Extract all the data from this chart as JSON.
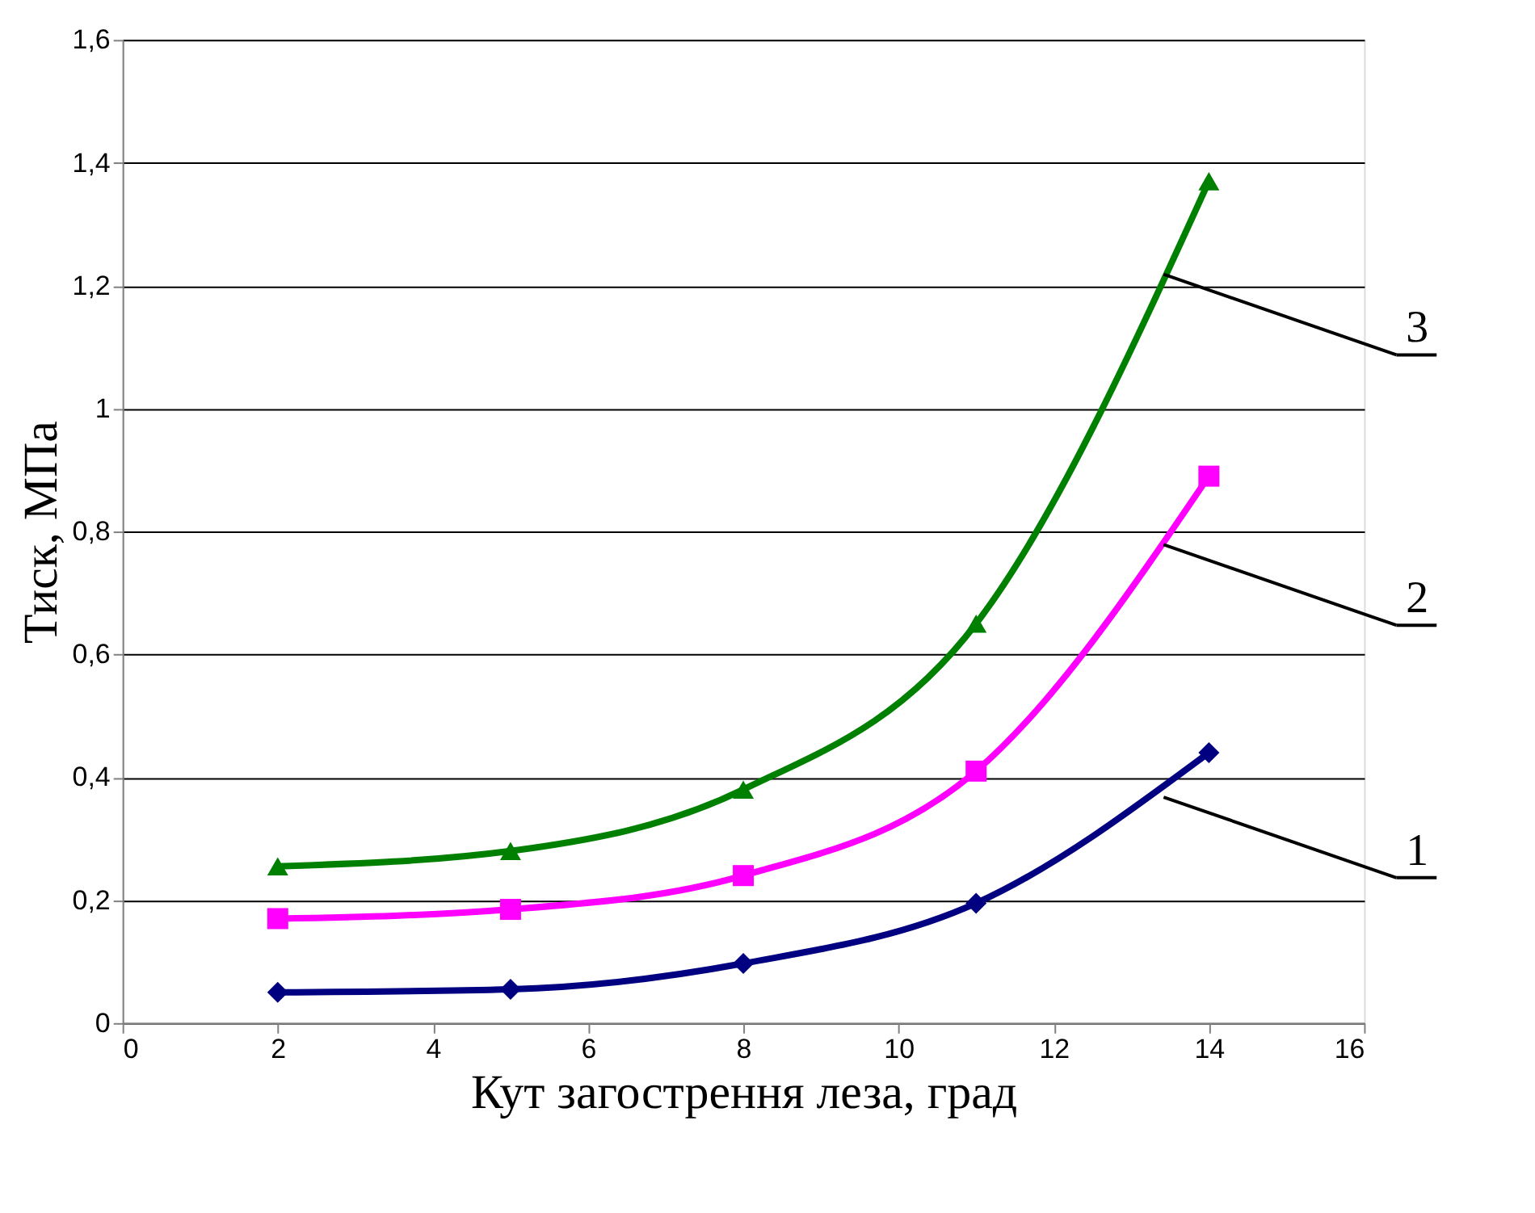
{
  "chart_data": {
    "type": "line",
    "xlabel": "Кут загострення леза, град",
    "ylabel": "Тиск, МПа",
    "x": [
      2,
      5,
      8,
      11,
      14
    ],
    "series": [
      {
        "name": "1",
        "color": "#000080",
        "marker": "diamond",
        "values": [
          0.05,
          0.055,
          0.097,
          0.195,
          0.44
        ]
      },
      {
        "name": "2",
        "color": "#ff00ff",
        "marker": "square",
        "values": [
          0.17,
          0.185,
          0.24,
          0.41,
          0.89
        ]
      },
      {
        "name": "3",
        "color": "#008000",
        "marker": "triangle",
        "values": [
          0.255,
          0.28,
          0.38,
          0.65,
          1.37
        ]
      }
    ],
    "xlim": [
      0,
      16
    ],
    "xticks": [
      0,
      2,
      4,
      6,
      8,
      10,
      12,
      14,
      16
    ],
    "ylim": [
      0,
      1.6
    ],
    "yticks": [
      0,
      {
        "value": 0.2,
        "label": "0,2"
      },
      {
        "value": 0.4,
        "label": "0,4"
      },
      {
        "value": 0.6,
        "label": "0,6"
      },
      {
        "value": 0.8,
        "label": "0,8"
      },
      1,
      {
        "value": 1.2,
        "label": "1,2"
      },
      {
        "value": 1.4,
        "label": "1,4"
      },
      {
        "value": 1.6,
        "label": "1,6"
      }
    ],
    "grid": "y",
    "line_style": "solid"
  }
}
